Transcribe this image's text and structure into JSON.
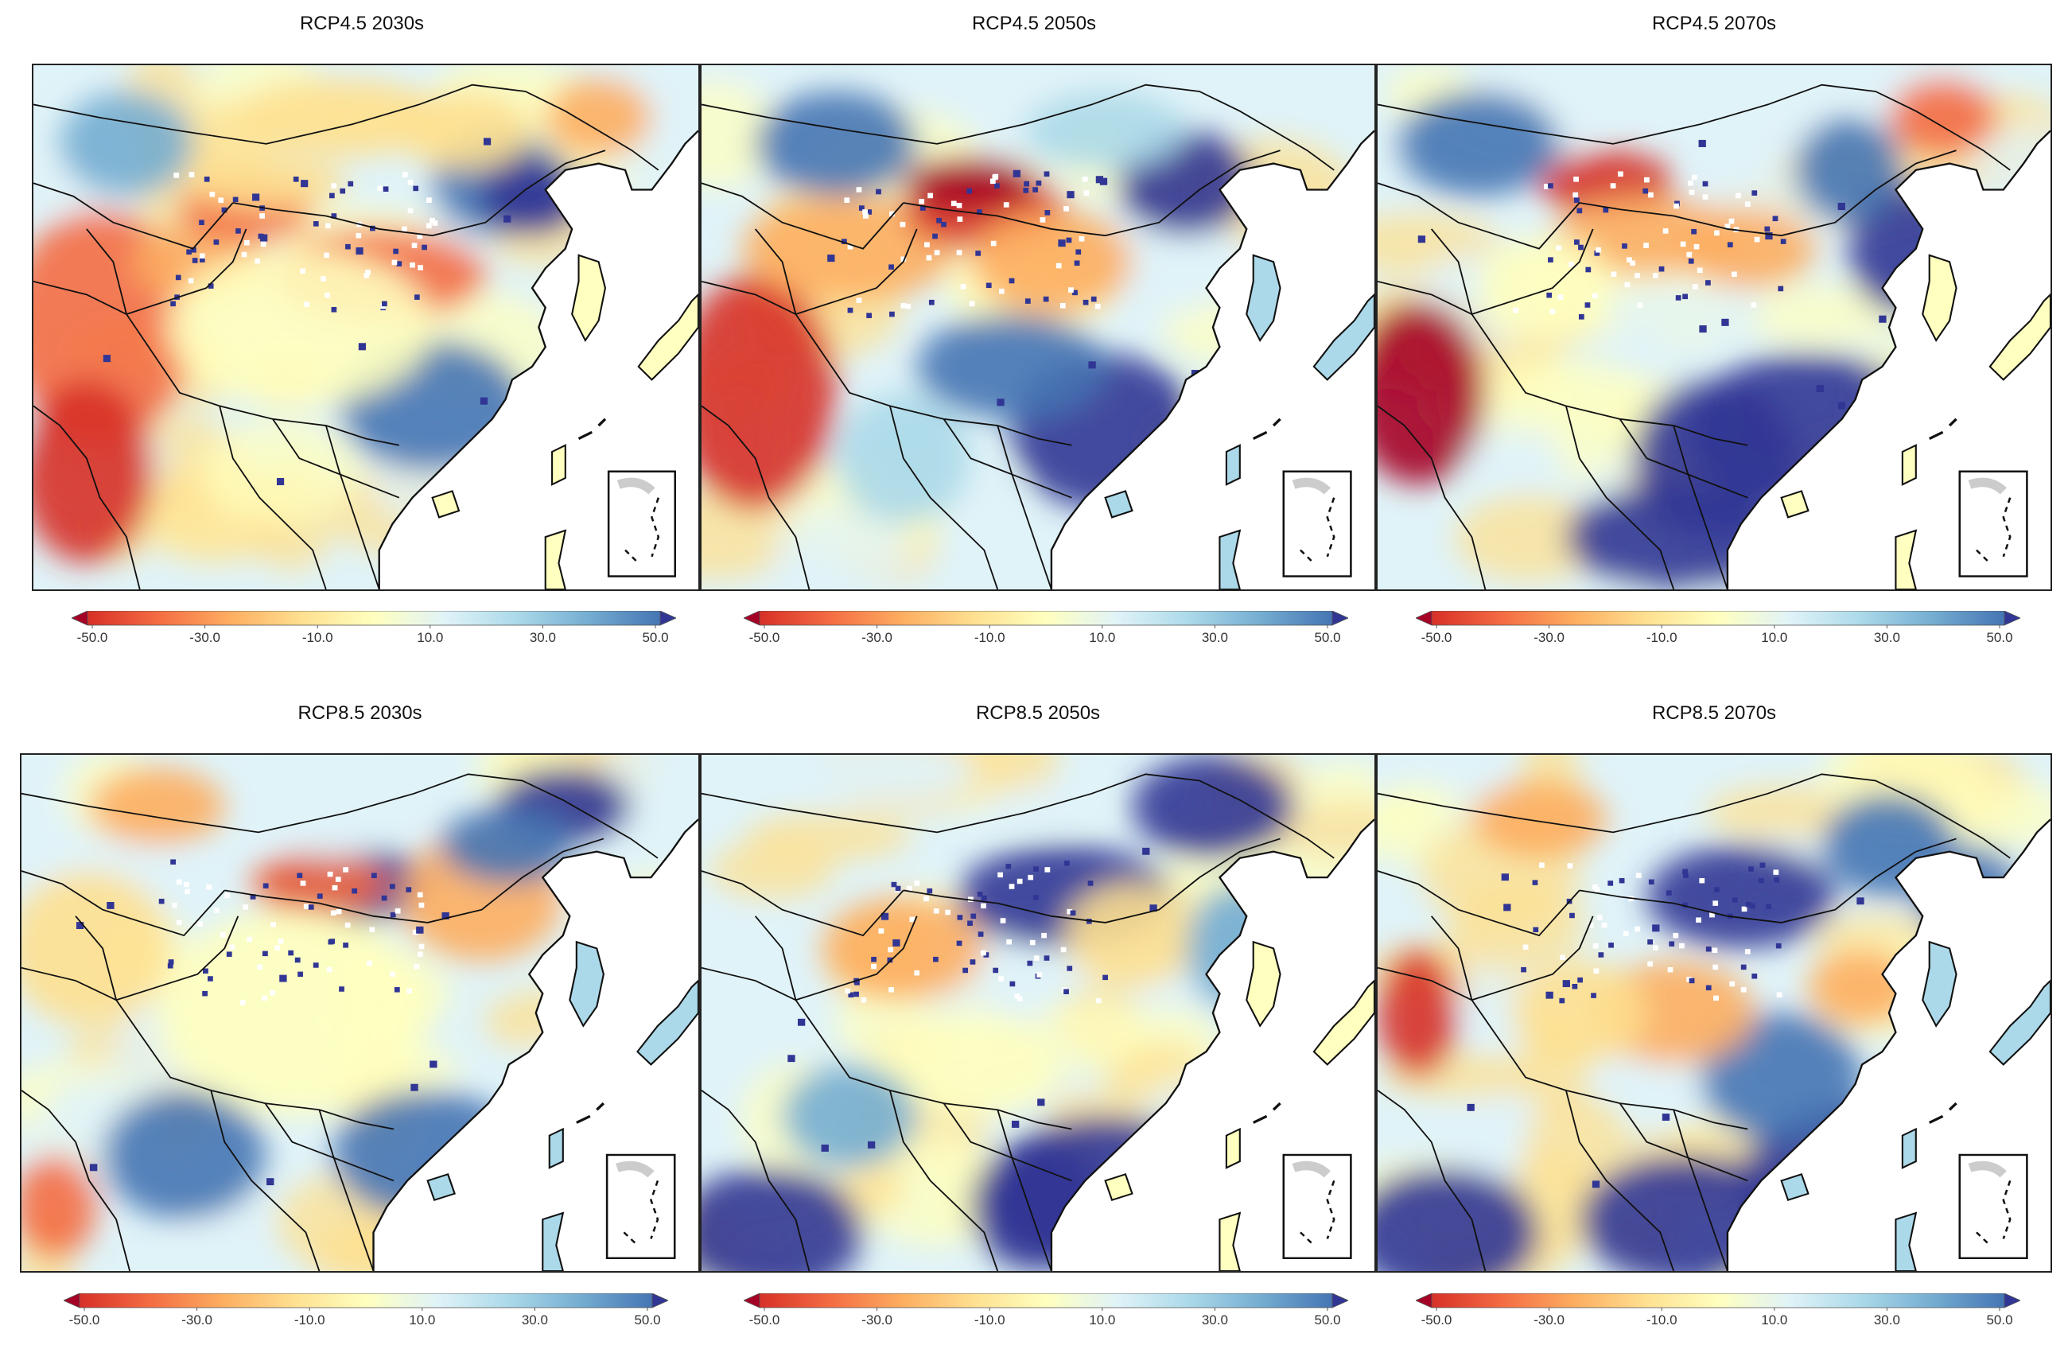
{
  "figure": {
    "colors": {
      "scale": [
        "#a50026",
        "#d73027",
        "#f46d43",
        "#fdae61",
        "#fee090",
        "#ffffbf",
        "#e0f3f8",
        "#abd9e9",
        "#74add1",
        "#4575b4",
        "#313695"
      ],
      "border": "#222222",
      "sea": "#ffffff"
    },
    "colorbar": {
      "ticks": [
        "-50.0",
        "-30.0",
        "-10.0",
        "10.0",
        "30.0",
        "50.0"
      ],
      "min": -50,
      "max": 50,
      "extend": "both"
    },
    "rows": [
      {
        "scenario": "RCP4.5",
        "panels": [
          {
            "title": "RCP4.5 2030s",
            "period": "2030s"
          },
          {
            "title": "RCP4.5 2050s",
            "period": "2050s"
          },
          {
            "title": "RCP4.5 2070s",
            "period": "2070s"
          }
        ]
      },
      {
        "scenario": "RCP8.5",
        "panels": [
          {
            "title": "RCP8.5 2030s",
            "period": "2030s"
          },
          {
            "title": "RCP8.5 2050s",
            "period": "2050s"
          },
          {
            "title": "RCP8.5 2070s",
            "period": "2070s"
          }
        ]
      }
    ]
  }
}
